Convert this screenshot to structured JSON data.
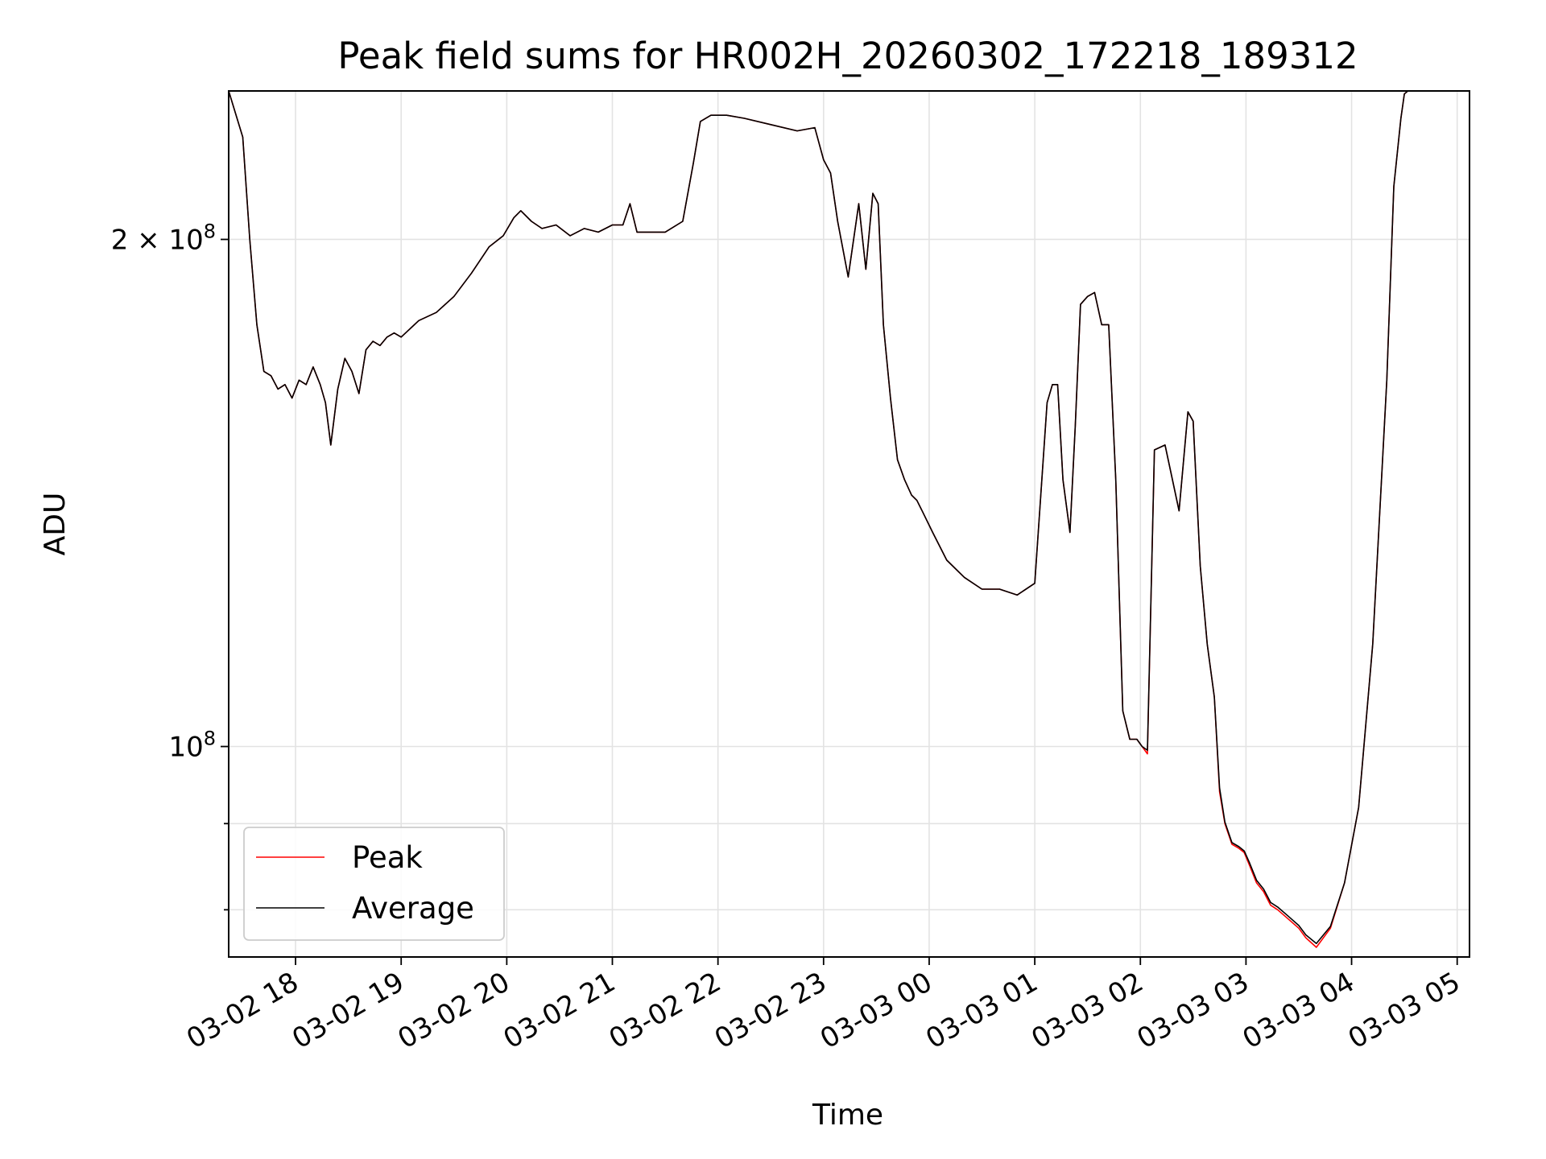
{
  "chart_data": {
    "type": "line",
    "title": "Peak field sums for HR002H_20260302_172218_189312",
    "xlabel": "Time",
    "ylabel": "ADU",
    "x_axis_type": "time",
    "y_scale": "log",
    "xlim": [
      "2026-03-02 17:22",
      "2026-03-03 05:07"
    ],
    "ylim": [
      75000000,
      245000000
    ],
    "grid": true,
    "legend_position": "lower-left",
    "x_tick_labels": [
      "03-02 18",
      "03-02 19",
      "03-02 20",
      "03-02 21",
      "03-02 22",
      "03-02 23",
      "03-03 00",
      "03-03 01",
      "03-03 02",
      "03-03 03",
      "03-03 04",
      "03-03 05"
    ],
    "x_tick_values": [
      "2026-03-02 18:00",
      "2026-03-02 19:00",
      "2026-03-02 20:00",
      "2026-03-02 21:00",
      "2026-03-02 22:00",
      "2026-03-02 23:00",
      "2026-03-03 00:00",
      "2026-03-03 01:00",
      "2026-03-03 02:00",
      "2026-03-03 03:00",
      "2026-03-03 04:00",
      "2026-03-03 05:00"
    ],
    "y_ticks": [
      {
        "value": 200000000,
        "mantissa": "2",
        "times": "×",
        "base": "10",
        "exp": "8"
      },
      {
        "value": 100000000,
        "mantissa": "",
        "times": "",
        "base": "10",
        "exp": "8"
      }
    ],
    "y_minor_ticks": [
      80000000,
      90000000
    ],
    "x": [
      "2026-03-02 17:22",
      "2026-03-02 17:30",
      "2026-03-02 17:34",
      "2026-03-02 17:38",
      "2026-03-02 17:42",
      "2026-03-02 17:46",
      "2026-03-02 17:50",
      "2026-03-02 17:54",
      "2026-03-02 17:58",
      "2026-03-02 18:02",
      "2026-03-02 18:06",
      "2026-03-02 18:10",
      "2026-03-02 18:14",
      "2026-03-02 18:17",
      "2026-03-02 18:20",
      "2026-03-02 18:24",
      "2026-03-02 18:28",
      "2026-03-02 18:32",
      "2026-03-02 18:36",
      "2026-03-02 18:40",
      "2026-03-02 18:44",
      "2026-03-02 18:48",
      "2026-03-02 18:52",
      "2026-03-02 18:56",
      "2026-03-02 19:00",
      "2026-03-02 19:10",
      "2026-03-02 19:20",
      "2026-03-02 19:30",
      "2026-03-02 19:40",
      "2026-03-02 19:50",
      "2026-03-02 19:58",
      "2026-03-02 20:04",
      "2026-03-02 20:08",
      "2026-03-02 20:14",
      "2026-03-02 20:20",
      "2026-03-02 20:28",
      "2026-03-02 20:36",
      "2026-03-02 20:44",
      "2026-03-02 20:52",
      "2026-03-02 21:00",
      "2026-03-02 21:06",
      "2026-03-02 21:10",
      "2026-03-02 21:14",
      "2026-03-02 21:18",
      "2026-03-02 21:30",
      "2026-03-02 21:40",
      "2026-03-02 21:46",
      "2026-03-02 21:50",
      "2026-03-02 21:56",
      "2026-03-02 22:05",
      "2026-03-02 22:15",
      "2026-03-02 22:30",
      "2026-03-02 22:45",
      "2026-03-02 22:55",
      "2026-03-02 23:00",
      "2026-03-02 23:04",
      "2026-03-02 23:08",
      "2026-03-02 23:14",
      "2026-03-02 23:20",
      "2026-03-02 23:24",
      "2026-03-02 23:28",
      "2026-03-02 23:31",
      "2026-03-02 23:34",
      "2026-03-02 23:38",
      "2026-03-02 23:42",
      "2026-03-02 23:46",
      "2026-03-02 23:50",
      "2026-03-02 23:53",
      "2026-03-02 23:56",
      "2026-03-03 00:02",
      "2026-03-03 00:10",
      "2026-03-03 00:20",
      "2026-03-03 00:30",
      "2026-03-03 00:40",
      "2026-03-03 00:50",
      "2026-03-03 01:00",
      "2026-03-03 01:07",
      "2026-03-03 01:10",
      "2026-03-03 01:13",
      "2026-03-03 01:16",
      "2026-03-03 01:20",
      "2026-03-03 01:23",
      "2026-03-03 01:26",
      "2026-03-03 01:30",
      "2026-03-03 01:34",
      "2026-03-03 01:38",
      "2026-03-03 01:42",
      "2026-03-03 01:46",
      "2026-03-03 01:50",
      "2026-03-03 01:54",
      "2026-03-03 01:58",
      "2026-03-03 02:01",
      "2026-03-03 02:04",
      "2026-03-03 02:08",
      "2026-03-03 02:14",
      "2026-03-03 02:22",
      "2026-03-03 02:27",
      "2026-03-03 02:30",
      "2026-03-03 02:34",
      "2026-03-03 02:38",
      "2026-03-03 02:42",
      "2026-03-03 02:45",
      "2026-03-03 02:48",
      "2026-03-03 02:52",
      "2026-03-03 02:56",
      "2026-03-03 02:59",
      "2026-03-03 03:02",
      "2026-03-03 03:06",
      "2026-03-03 03:10",
      "2026-03-03 03:14",
      "2026-03-03 03:18",
      "2026-03-03 03:24",
      "2026-03-03 03:30",
      "2026-03-03 03:34",
      "2026-03-03 03:40",
      "2026-03-03 03:48",
      "2026-03-03 03:56",
      "2026-03-03 04:04",
      "2026-03-03 04:12",
      "2026-03-03 04:20",
      "2026-03-03 04:24",
      "2026-03-03 04:28",
      "2026-03-03 04:30",
      "2026-03-03 04:32",
      "2026-03-03 04:36",
      "2026-03-03 04:40",
      "2026-03-03 04:44",
      "2026-03-03 04:48",
      "2026-03-03 04:52",
      "2026-03-03 04:56",
      "2026-03-03 05:00",
      "2026-03-03 05:07"
    ],
    "series": [
      {
        "name": "Peak",
        "color": "#ff0000",
        "values": [
          245000000,
          230000000,
          200000000,
          178000000,
          167000000,
          166000000,
          163000000,
          164000000,
          161000000,
          165000000,
          164000000,
          168000000,
          164000000,
          160000000,
          151000000,
          163000000,
          170000000,
          167000000,
          162000000,
          172000000,
          174000000,
          173000000,
          175000000,
          176000000,
          175000000,
          179000000,
          181000000,
          185000000,
          191000000,
          198000000,
          201000000,
          206000000,
          208000000,
          205000000,
          203000000,
          204000000,
          201000000,
          203000000,
          202000000,
          204000000,
          204000000,
          210000000,
          202000000,
          202000000,
          202000000,
          205000000,
          222000000,
          235000000,
          237000000,
          237000000,
          236000000,
          234000000,
          232000000,
          233000000,
          223000000,
          219000000,
          205000000,
          190000000,
          210000000,
          192000000,
          213000000,
          210000000,
          178000000,
          161000000,
          148000000,
          144000000,
          141000000,
          140000000,
          138000000,
          134000000,
          129000000,
          126000000,
          124000000,
          124000000,
          123000000,
          125000000,
          160000000,
          164000000,
          164000000,
          144000000,
          134000000,
          155000000,
          183000000,
          185000000,
          186000000,
          178000000,
          178000000,
          144000000,
          105000000,
          101000000,
          101000000,
          100000000,
          99000000,
          150000000,
          151000000,
          138000000,
          158000000,
          156000000,
          128000000,
          115000000,
          107000000,
          94000000,
          90000000,
          87500000,
          87000000,
          86500000,
          85000000,
          83000000,
          82000000,
          80500000,
          80000000,
          79000000,
          78000000,
          77000000,
          76000000,
          78000000,
          83000000,
          92000000,
          115000000,
          165000000,
          215000000,
          236000000,
          244000000,
          245000000,
          245000000,
          245000000,
          245000000,
          245000000,
          245000000,
          245000000,
          245000000,
          245000000
        ]
      },
      {
        "name": "Average",
        "color": "#000000",
        "values": [
          245000000,
          230000000,
          200000000,
          178000000,
          167000000,
          166000000,
          163000000,
          164000000,
          161000000,
          165000000,
          164000000,
          168000000,
          164000000,
          160000000,
          151000000,
          163000000,
          170000000,
          167000000,
          162000000,
          172000000,
          174000000,
          173000000,
          175000000,
          176000000,
          175000000,
          179000000,
          181000000,
          185000000,
          191000000,
          198000000,
          201000000,
          206000000,
          208000000,
          205000000,
          203000000,
          204000000,
          201000000,
          203000000,
          202000000,
          204000000,
          204000000,
          210000000,
          202000000,
          202000000,
          202000000,
          205000000,
          222000000,
          235000000,
          237000000,
          237000000,
          236000000,
          234000000,
          232000000,
          233000000,
          223000000,
          219000000,
          205000000,
          190000000,
          210000000,
          192000000,
          213000000,
          210000000,
          178000000,
          161000000,
          148000000,
          144000000,
          141000000,
          140000000,
          138000000,
          134000000,
          129000000,
          126000000,
          124000000,
          124000000,
          123000000,
          125000000,
          160000000,
          164000000,
          164000000,
          144000000,
          134000000,
          155000000,
          183000000,
          185000000,
          186000000,
          178000000,
          178000000,
          144000000,
          105000000,
          101000000,
          101000000,
          100000000,
          99500000,
          150000000,
          151000000,
          138000000,
          158000000,
          156000000,
          128000000,
          115000000,
          107000000,
          94500000,
          90200000,
          87700000,
          87200000,
          86700000,
          85300000,
          83300000,
          82300000,
          80800000,
          80300000,
          79300000,
          78300000,
          77300000,
          76400000,
          78200000,
          83000000,
          92000000,
          115000000,
          165000000,
          215000000,
          236000000,
          244000000,
          245000000,
          245000000,
          245000000,
          245000000,
          245000000,
          245000000,
          245000000,
          245000000,
          245000000
        ]
      }
    ]
  }
}
